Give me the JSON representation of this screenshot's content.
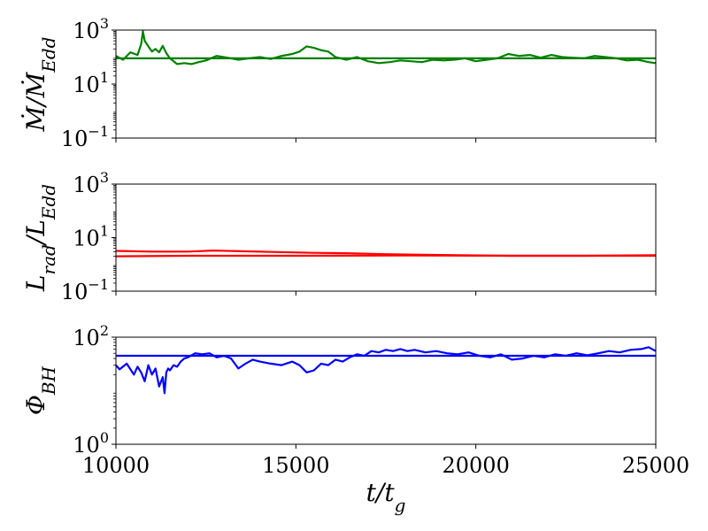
{
  "chart_data": [
    {
      "type": "line",
      "ylabel": "Ṁ/Ṁ_Edd",
      "yscale": "log",
      "ylim_exp": [
        -1,
        3
      ],
      "ytick_exps": [
        -1,
        1,
        3
      ],
      "xlim": [
        10000,
        25000
      ],
      "series": [
        {
          "color": "#008000",
          "x": [
            10000,
            10200,
            10400,
            10600,
            10700,
            10750,
            10800,
            10900,
            11000,
            11100,
            11200,
            11300,
            11400,
            11500,
            11700,
            11900,
            12100,
            12300,
            12500,
            12800,
            13100,
            13400,
            13700,
            14000,
            14300,
            14600,
            14900,
            15100,
            15300,
            15500,
            15700,
            15900,
            16100,
            16400,
            16700,
            17000,
            17300,
            17600,
            17900,
            18200,
            18500,
            18800,
            19100,
            19400,
            19700,
            20000,
            20300,
            20600,
            20900,
            21200,
            21500,
            21800,
            22100,
            22400,
            22700,
            23000,
            23300,
            23600,
            23900,
            24200,
            24500,
            24800,
            25000
          ],
          "values": [
            110,
            80,
            150,
            120,
            300,
            900,
            400,
            250,
            160,
            200,
            150,
            260,
            140,
            90,
            55,
            60,
            55,
            65,
            75,
            110,
            95,
            80,
            90,
            100,
            85,
            110,
            130,
            160,
            250,
            220,
            180,
            160,
            100,
            80,
            100,
            70,
            60,
            65,
            75,
            70,
            65,
            80,
            75,
            80,
            90,
            70,
            80,
            90,
            130,
            110,
            120,
            95,
            120,
            100,
            95,
            90,
            110,
            100,
            90,
            75,
            80,
            65,
            60
          ]
        },
        {
          "color": "#008000",
          "x": [
            10000,
            25000
          ],
          "values": [
            90,
            90
          ]
        }
      ]
    },
    {
      "type": "line",
      "ylabel": "L_rad/L_Edd",
      "yscale": "log",
      "ylim_exp": [
        -1,
        3
      ],
      "ytick_exps": [
        -1,
        1,
        3
      ],
      "xlim": [
        10000,
        25000
      ],
      "series": [
        {
          "color": "#ff0000",
          "x": [
            10000,
            11000,
            12000,
            12700,
            13500,
            14500,
            15500,
            16500,
            17500,
            18500,
            19500,
            21000,
            23000,
            25000
          ],
          "values": [
            3.2,
            3.0,
            3.0,
            3.3,
            3.1,
            2.9,
            2.7,
            2.6,
            2.4,
            2.3,
            2.2,
            2.1,
            2.1,
            2.2
          ]
        },
        {
          "color": "#ff0000",
          "x": [
            10000,
            12000,
            15000,
            18000,
            21000,
            25000
          ],
          "values": [
            2.0,
            2.1,
            2.1,
            2.15,
            2.1,
            2.1
          ]
        }
      ]
    },
    {
      "type": "line",
      "ylabel": "Φ_BH",
      "yscale": "log",
      "ylim_exp": [
        0,
        2
      ],
      "ytick_exps": [
        0,
        2
      ],
      "xlim": [
        10000,
        25000
      ],
      "xlabel": "t/t_g",
      "xticks": [
        10000,
        15000,
        20000,
        25000
      ],
      "series": [
        {
          "color": "#0000ff",
          "x": [
            10000,
            10100,
            10300,
            10500,
            10600,
            10700,
            10800,
            10900,
            11000,
            11100,
            11200,
            11300,
            11350,
            11400,
            11450,
            11500,
            11600,
            11700,
            11800,
            11900,
            12000,
            12200,
            12400,
            12600,
            12800,
            13000,
            13200,
            13400,
            13600,
            13800,
            14000,
            14300,
            14600,
            14900,
            15100,
            15300,
            15500,
            15700,
            15900,
            16100,
            16300,
            16500,
            16700,
            16900,
            17100,
            17300,
            17500,
            17700,
            17900,
            18100,
            18300,
            18600,
            18900,
            19200,
            19500,
            19800,
            20100,
            20400,
            20700,
            21000,
            21300,
            21600,
            21900,
            22200,
            22500,
            22800,
            23100,
            23400,
            23700,
            24000,
            24300,
            24600,
            24800,
            25000
          ],
          "values": [
            30,
            25,
            32,
            20,
            28,
            22,
            15,
            30,
            20,
            26,
            12,
            18,
            9,
            22,
            26,
            24,
            30,
            28,
            35,
            40,
            42,
            50,
            48,
            50,
            42,
            45,
            40,
            26,
            32,
            38,
            35,
            32,
            30,
            35,
            30,
            22,
            24,
            32,
            30,
            38,
            35,
            42,
            48,
            45,
            55,
            52,
            58,
            55,
            60,
            55,
            58,
            52,
            55,
            50,
            48,
            52,
            45,
            42,
            48,
            38,
            40,
            45,
            42,
            48,
            45,
            50,
            46,
            50,
            55,
            52,
            58,
            60,
            65,
            55
          ]
        },
        {
          "color": "#0000ff",
          "x": [
            10000,
            25000
          ],
          "values": [
            45,
            45
          ]
        }
      ]
    }
  ]
}
